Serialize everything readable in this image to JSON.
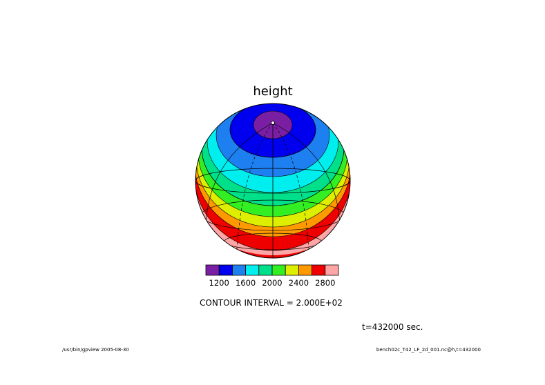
{
  "chart_data": {
    "type": "heatmap",
    "title": "height",
    "projection": "orthographic globe, north pole near top",
    "contour_levels": [
      1200,
      1400,
      1600,
      1800,
      2000,
      2200,
      2400,
      2600,
      2800
    ],
    "band_colors": [
      "#7a1fa3",
      "#0000ee",
      "#1e7ff0",
      "#00eeee",
      "#00e08a",
      "#33ee22",
      "#ddee00",
      "#ff9900",
      "#ee0000",
      "#ffa5a5"
    ],
    "band_values_pole_to_equator": [
      "<1200",
      "1200-1400",
      "1400-1600",
      "1600-1800",
      "1800-2000",
      "2000-2200",
      "2200-2400",
      "2400-2600",
      "2600-2800",
      ">2800"
    ],
    "colorbar_tick_labels": [
      "1200",
      "1600",
      "2000",
      "2400",
      "2800"
    ],
    "contour_interval_label": "CONTOUR INTERVAL = 2.000E+02",
    "time_label": "t=432000 sec.",
    "footer_left": "/usr/bin/gpview  2005-08-30",
    "footer_right": "bench02c_T42_LF_2d_001.nc@h,t=432000"
  }
}
